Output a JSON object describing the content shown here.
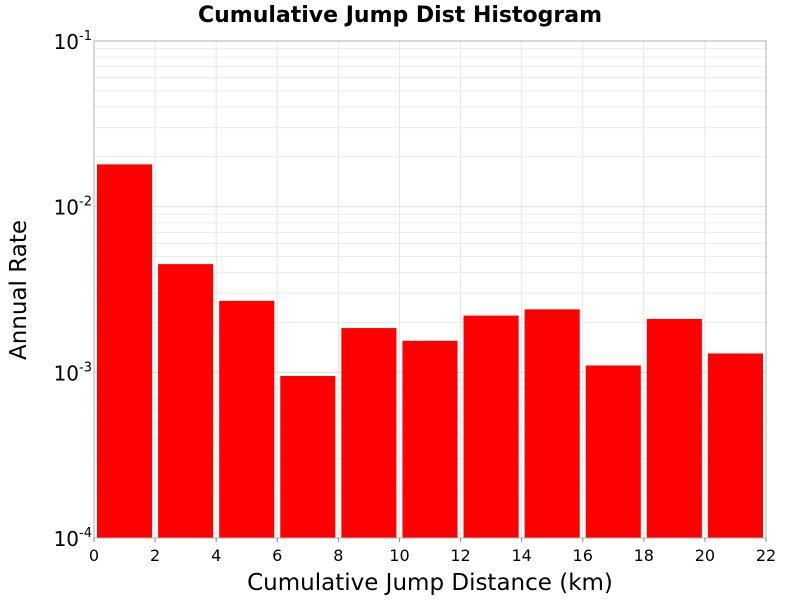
{
  "chart_data": {
    "type": "bar",
    "title": "Cumulative Jump Dist Histogram",
    "xlabel": "Cumulative Jump Distance (km)",
    "ylabel": "Annual Rate",
    "xlim": [
      0,
      22
    ],
    "ylim": [
      0.0001,
      0.1
    ],
    "yscale": "log",
    "grid": true,
    "bar_color": "#ff0000",
    "x_ticks": [
      0,
      2,
      4,
      6,
      8,
      10,
      12,
      14,
      16,
      18,
      20,
      22
    ],
    "y_ticks": [
      {
        "base": "10",
        "exp": "-1",
        "value": 0.1
      },
      {
        "base": "10",
        "exp": "-2",
        "value": 0.01
      },
      {
        "base": "10",
        "exp": "-3",
        "value": 0.001
      },
      {
        "base": "10",
        "exp": "-4",
        "value": 0.0001
      }
    ],
    "bars": [
      {
        "x0": 0,
        "x1": 2,
        "value": 0.018
      },
      {
        "x0": 2,
        "x1": 4,
        "value": 0.0045
      },
      {
        "x0": 4,
        "x1": 6,
        "value": 0.0027
      },
      {
        "x0": 6,
        "x1": 8,
        "value": 0.00095
      },
      {
        "x0": 8,
        "x1": 10,
        "value": 0.00185
      },
      {
        "x0": 10,
        "x1": 12,
        "value": 0.00155
      },
      {
        "x0": 12,
        "x1": 14,
        "value": 0.0022
      },
      {
        "x0": 14,
        "x1": 16,
        "value": 0.0024
      },
      {
        "x0": 16,
        "x1": 18,
        "value": 0.0011
      },
      {
        "x0": 18,
        "x1": 20,
        "value": 0.0021
      },
      {
        "x0": 20,
        "x1": 22,
        "value": 0.0013
      }
    ]
  }
}
